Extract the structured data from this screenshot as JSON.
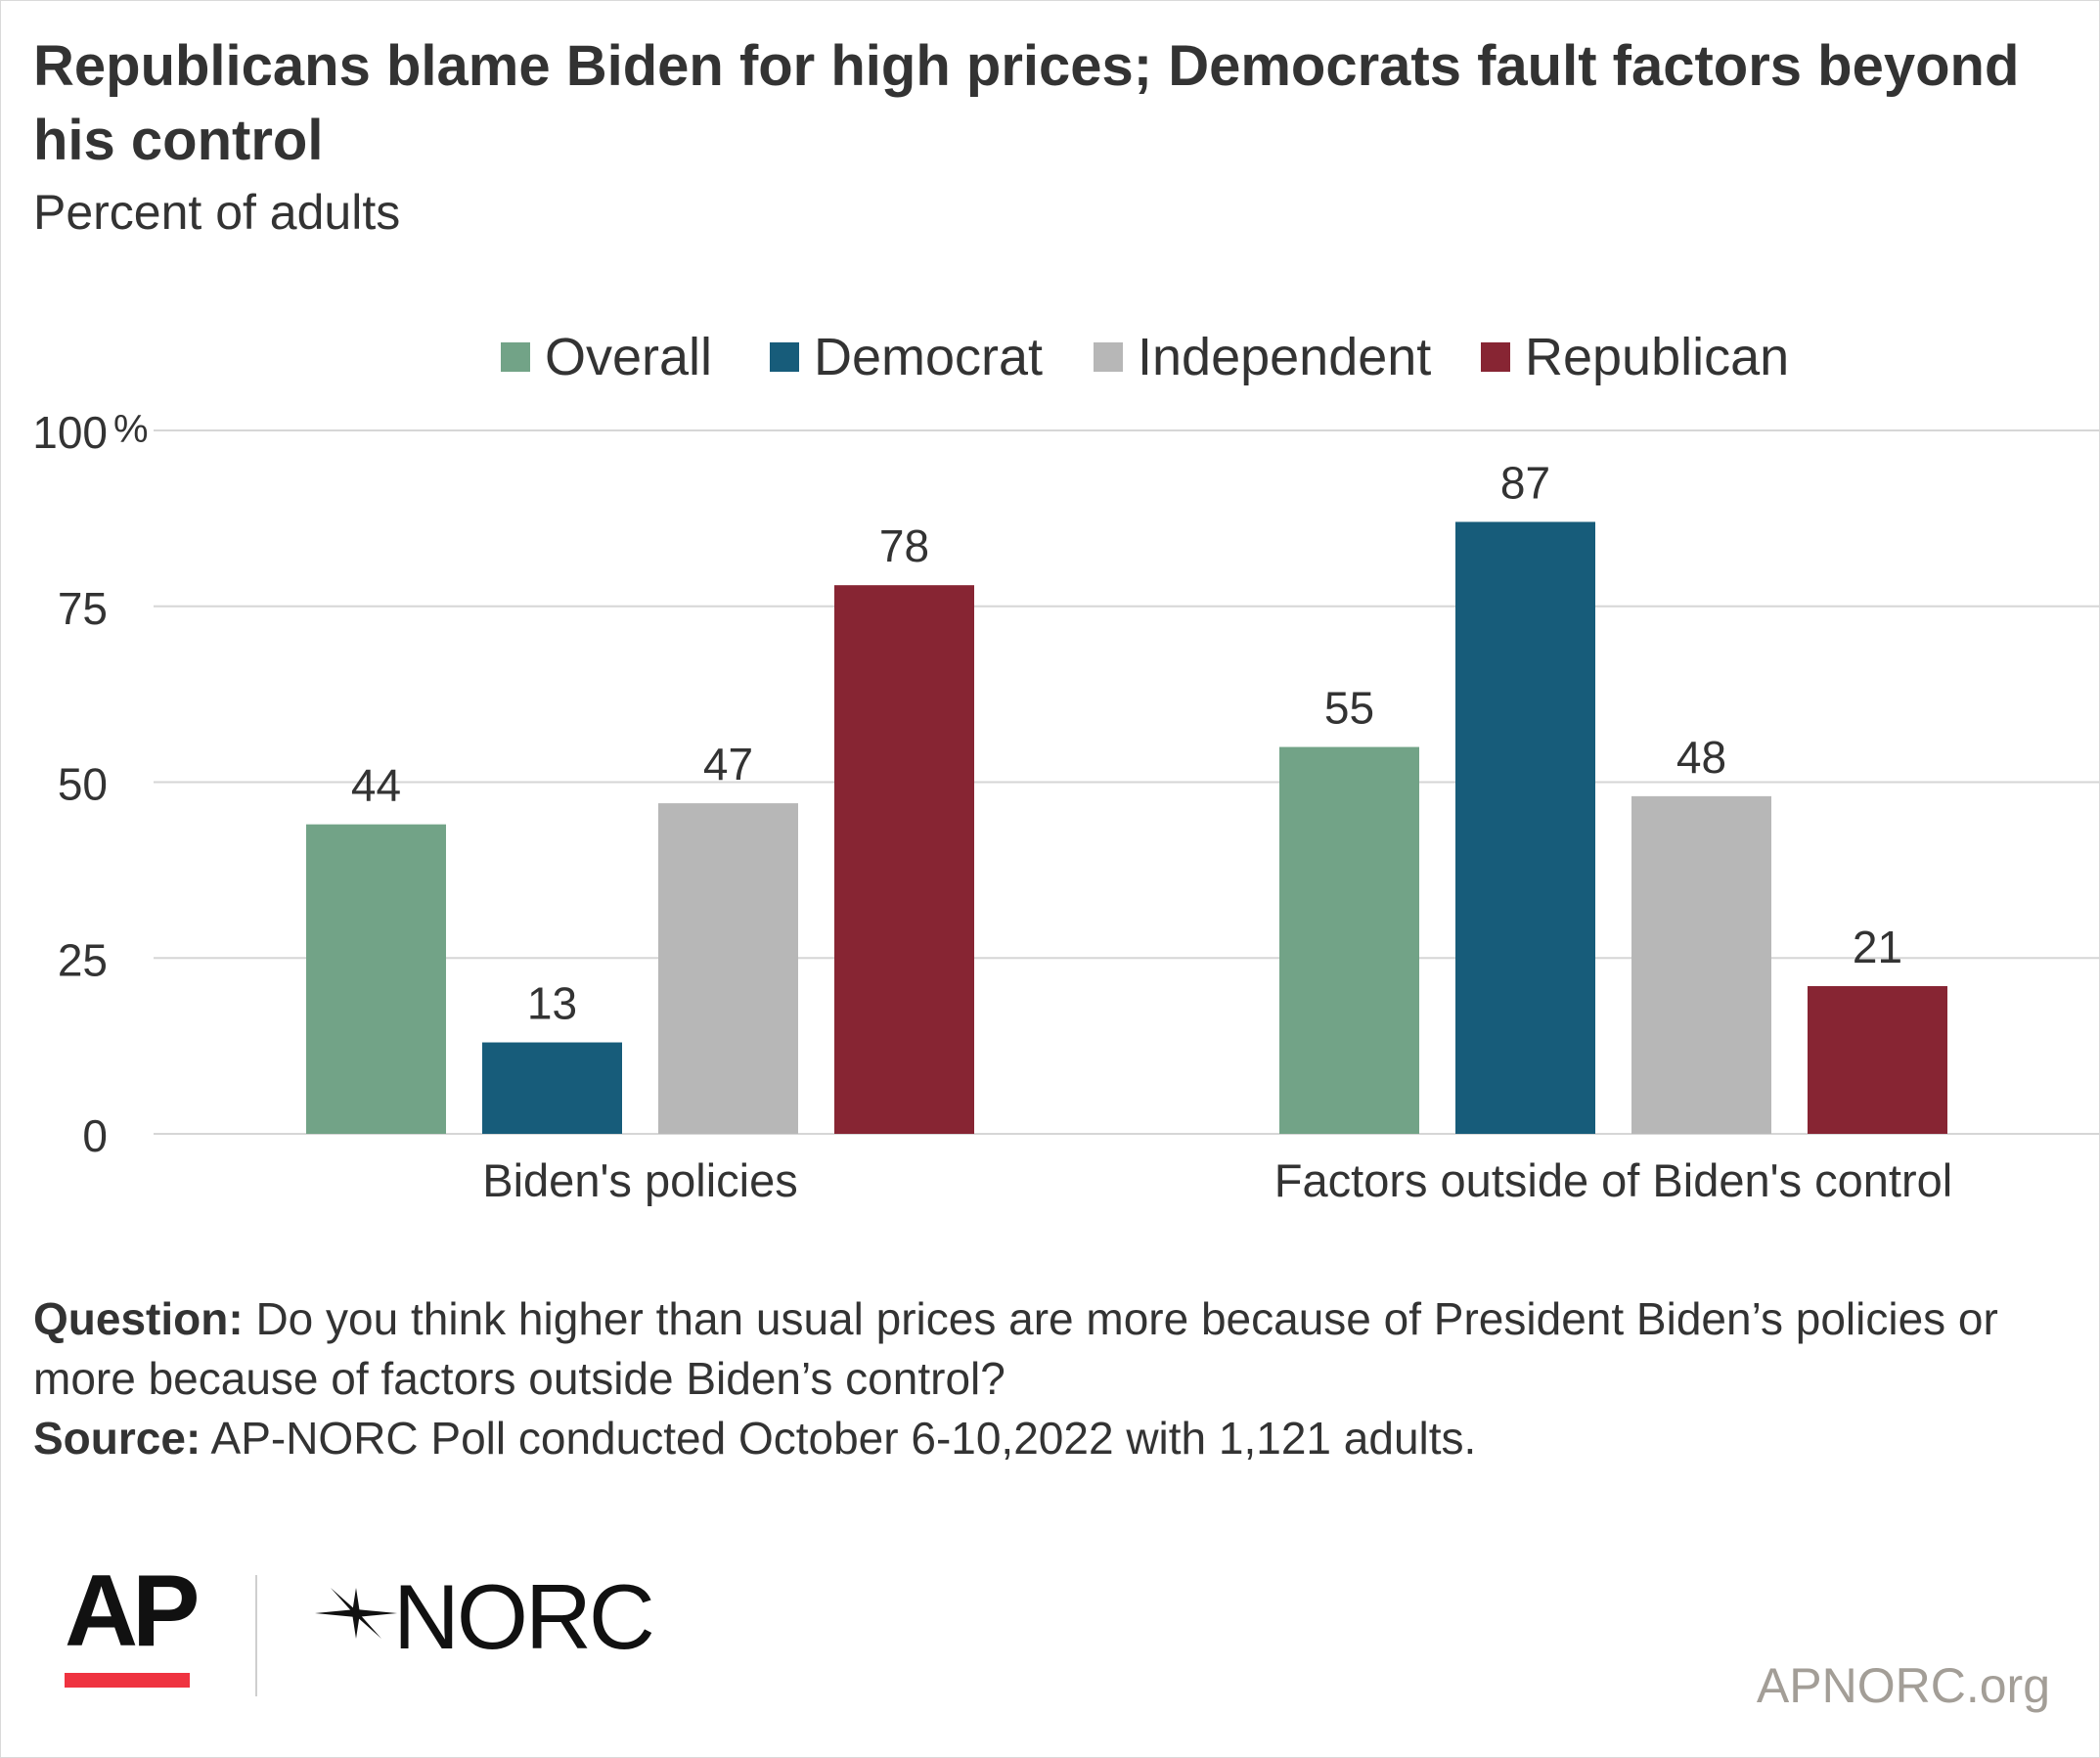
{
  "title": "Republicans blame Biden for high prices; Democrats fault factors beyond his control",
  "subtitle": "Percent of adults",
  "legend": [
    {
      "name": "Overall",
      "color": "#72a387"
    },
    {
      "name": "Democrat",
      "color": "#175c7a"
    },
    {
      "name": "Independent",
      "color": "#b7b7b7"
    },
    {
      "name": "Republican",
      "color": "#872533"
    }
  ],
  "chart_data": {
    "type": "bar",
    "categories": [
      "Biden's policies",
      "Factors outside of Biden's control"
    ],
    "series": [
      {
        "name": "Overall",
        "values": [
          44,
          55
        ],
        "color": "#72a387"
      },
      {
        "name": "Democrat",
        "values": [
          13,
          87
        ],
        "color": "#175c7a"
      },
      {
        "name": "Independent",
        "values": [
          47,
          48
        ],
        "color": "#b7b7b7"
      },
      {
        "name": "Republican",
        "values": [
          78,
          21
        ],
        "color": "#872533"
      }
    ],
    "yticks": [
      "0",
      "25",
      "50",
      "75",
      "100"
    ],
    "ytick_values": [
      0,
      25,
      50,
      75,
      100
    ],
    "yunit": "%",
    "ylim": [
      0,
      100
    ],
    "grid": true,
    "data_labels": true,
    "legend_position": "top"
  },
  "footnote": {
    "question_label": "Question:",
    "question_text": " Do you think higher than usual prices are more because of President Biden’s policies or more because of factors outside Biden’s control?",
    "source_label": "Source:",
    "source_text": " AP-NORC Poll conducted October 6-10,2022 with 1,121 adults."
  },
  "logos": {
    "ap": "AP",
    "norc": "NORC",
    "accent_color": "#ef3340"
  },
  "website": "APNORC.org"
}
